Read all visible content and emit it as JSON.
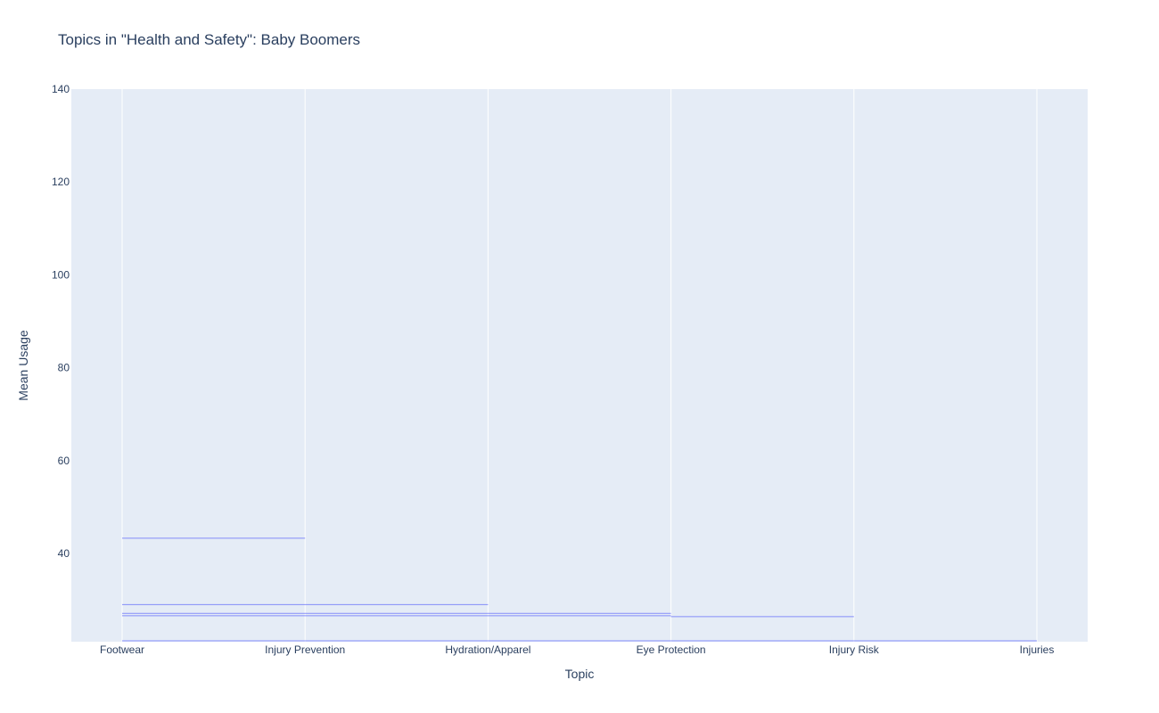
{
  "chart_data": {
    "type": "line",
    "title": "Topics in \"Health and Safety\": Baby Boomers",
    "xlabel": "Topic",
    "ylabel": "Mean Usage",
    "categories": [
      "Footwear",
      "Injury Prevention",
      "Hydration/Apparel",
      "Eye Protection",
      "Injury Risk",
      "Injuries"
    ],
    "ylim": [
      21,
      140
    ],
    "yticks": [
      40,
      60,
      80,
      100,
      120,
      140
    ],
    "grid": true,
    "series": [
      {
        "from": "Footwear",
        "to": "Injury Prevention",
        "y": 43.3
      },
      {
        "from": "Footwear",
        "to": "Hydration/Apparel",
        "y": 29
      },
      {
        "from": "Footwear",
        "to": "Eye Protection",
        "y": 27.1
      },
      {
        "from": "Footwear",
        "to": "Eye Protection",
        "y": 26.6
      },
      {
        "from": "Eye Protection",
        "to": "Injury Risk",
        "y": 26.4
      },
      {
        "from": "Footwear",
        "to": "Injuries",
        "y": 21.2
      }
    ],
    "colors": {
      "line": "#636efa",
      "plot_bg": "#e5ecf6",
      "grid": "#ffffff",
      "text": "#2a3f5f"
    }
  }
}
